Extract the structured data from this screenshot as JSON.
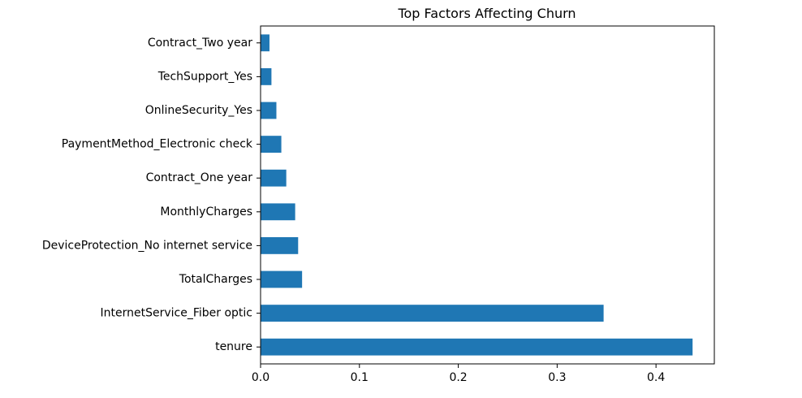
{
  "chart_data": {
    "type": "bar",
    "orientation": "horizontal",
    "title": "Top Factors Affecting Churn",
    "xlabel": "",
    "ylabel": "",
    "categories": [
      "tenure",
      "InternetService_Fiber optic",
      "TotalCharges",
      "DeviceProtection_No internet service",
      "MonthlyCharges",
      "Contract_One year",
      "PaymentMethod_Electronic check",
      "OnlineSecurity_Yes",
      "TechSupport_Yes",
      "Contract_Two year"
    ],
    "values": [
      0.437,
      0.347,
      0.042,
      0.038,
      0.035,
      0.026,
      0.021,
      0.016,
      0.011,
      0.009
    ],
    "xlim": [
      0,
      0.459
    ],
    "xticks": [
      0.0,
      0.1,
      0.2,
      0.3,
      0.4
    ],
    "xtick_labels": [
      "0.0",
      "0.1",
      "0.2",
      "0.3",
      "0.4"
    ],
    "grid": false,
    "legend": "none",
    "bar_color": "#1f77b4"
  }
}
